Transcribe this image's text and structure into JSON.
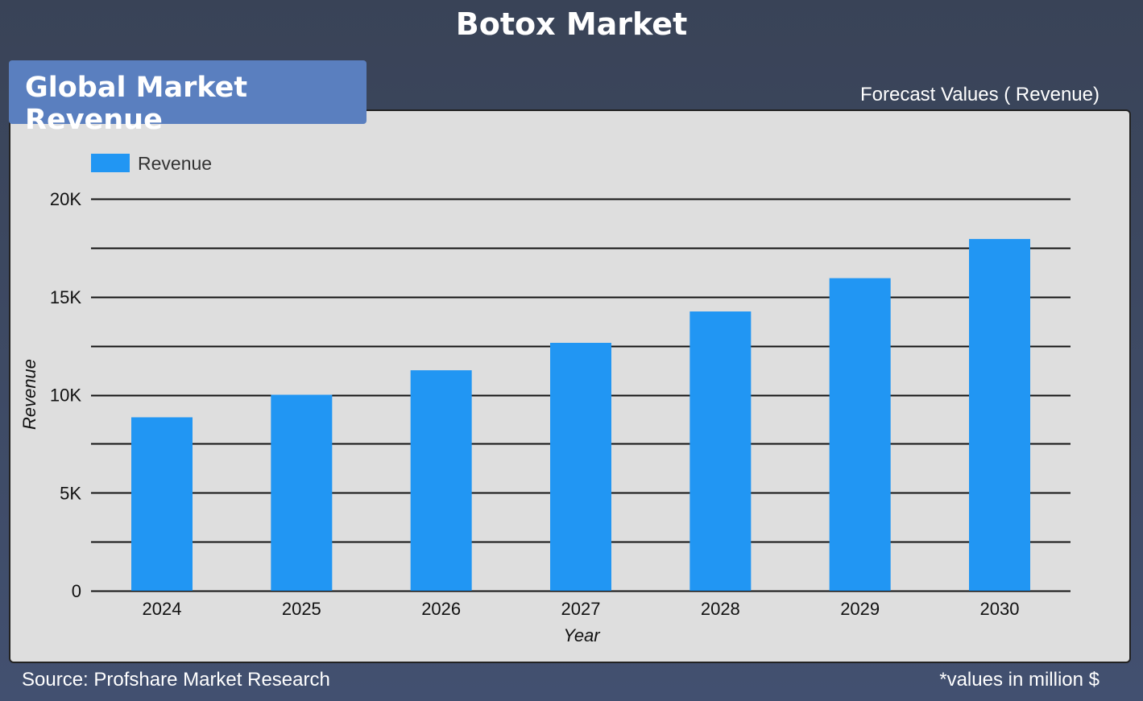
{
  "title": "Botox Market",
  "tab_label": "Global Market Revenue",
  "forecast_label": "Forecast Values ( Revenue)",
  "source": "Source: Profshare Market Research",
  "unit_note": "*values in million $",
  "colors": {
    "bar": "#2196f3",
    "panel": "#dedede",
    "tab": "#5a7fbf",
    "background": "#3b4559"
  },
  "chart_data": {
    "type": "bar",
    "categories": [
      "2024",
      "2025",
      "2026",
      "2027",
      "2028",
      "2029",
      "2030"
    ],
    "series": [
      {
        "name": "Revenue",
        "values": [
          8850,
          10000,
          11250,
          12650,
          14250,
          15950,
          17950
        ]
      }
    ],
    "xlabel": "Year",
    "ylabel": "Revenue",
    "ylim": [
      0,
      20000
    ],
    "yticks": [
      0,
      5000,
      10000,
      15000,
      20000
    ],
    "ytick_labels": [
      "0",
      "5K",
      "10K",
      "15K",
      "20K"
    ],
    "grid": true,
    "legend_position": "top-left"
  }
}
